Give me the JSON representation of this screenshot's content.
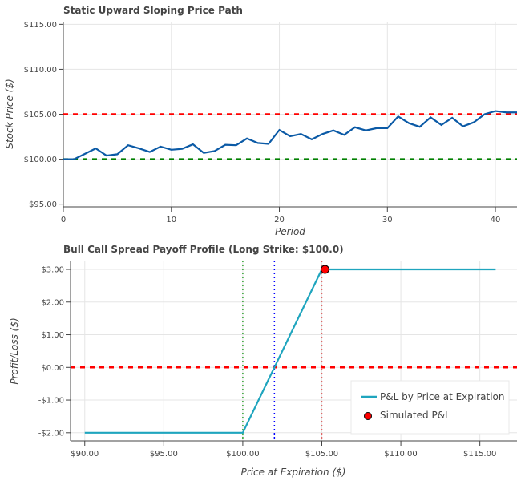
{
  "chart_data": [
    {
      "type": "line",
      "title": "Static Upward Sloping Price Path",
      "xlabel": "Period",
      "ylabel": "Stock Price ($)",
      "xlim": [
        0,
        42
      ],
      "ylim": [
        94.7,
        115.3
      ],
      "xticks": [
        0,
        10,
        20,
        30,
        40
      ],
      "xtick_labels": [
        "0",
        "10",
        "20",
        "30",
        "40"
      ],
      "yticks": [
        95,
        100,
        105,
        110,
        115
      ],
      "ytick_labels": [
        "$95.00",
        "$100.00",
        "$105.00",
        "$110.00",
        "$115.00"
      ],
      "grid": true,
      "series": [
        {
          "color": "#0b5aa6",
          "x": [
            0,
            1,
            2,
            3,
            4,
            5,
            6,
            7,
            8,
            9,
            10,
            11,
            12,
            13,
            14,
            15,
            16,
            17,
            18,
            19,
            20,
            21,
            22,
            23,
            24,
            25,
            26,
            27,
            28,
            29,
            30,
            31,
            32,
            33,
            34,
            35,
            36,
            37,
            38,
            39,
            40,
            41,
            42
          ],
          "y": [
            100.0,
            100.0,
            100.6,
            101.2,
            100.4,
            100.55,
            101.55,
            101.2,
            100.8,
            101.4,
            101.05,
            101.15,
            101.65,
            100.7,
            100.9,
            101.6,
            101.55,
            102.3,
            101.8,
            101.7,
            103.25,
            102.55,
            102.8,
            102.2,
            102.8,
            103.2,
            102.7,
            103.55,
            103.2,
            103.45,
            103.45,
            104.75,
            104.0,
            103.6,
            104.65,
            103.8,
            104.6,
            103.65,
            104.1,
            105.0,
            105.35,
            105.2,
            105.2
          ]
        }
      ],
      "hlines": [
        {
          "y": 105,
          "color": "#ff0000",
          "style": "dashed"
        },
        {
          "y": 100,
          "color": "#008000",
          "style": "dashed"
        }
      ]
    },
    {
      "type": "line",
      "title": "Bull Call Spread Payoff Profile (Long Strike: $100.0)",
      "xlabel": "Price at Expiration ($)",
      "ylabel": "Profit/Loss ($)",
      "xlim": [
        89.1,
        117.35
      ],
      "ylim": [
        -2.25,
        3.27
      ],
      "xticks": [
        90,
        95,
        100,
        105,
        110,
        115
      ],
      "xtick_labels": [
        "$90.00",
        "$95.00",
        "$100.00",
        "$105.00",
        "$110.00",
        "$115.00"
      ],
      "yticks": [
        -2,
        -1,
        0,
        1,
        2,
        3
      ],
      "ytick_labels": [
        "-$2.00",
        "-$1.00",
        "$0.00",
        "$1.00",
        "$2.00",
        "$3.00"
      ],
      "grid": true,
      "legend": "bottom-right",
      "series": [
        {
          "name": "P&L by Price at Expiration",
          "color": "#1fa5be",
          "x": [
            90,
            100,
            105,
            116
          ],
          "y": [
            -2,
            -2,
            3,
            3
          ]
        }
      ],
      "points": [
        {
          "name": "Simulated P&L",
          "color": "#ff0000",
          "x": 105.2,
          "y": 3.0
        }
      ],
      "hlines": [
        {
          "y": 0,
          "color": "#ff0000",
          "style": "dashed"
        }
      ],
      "vlines": [
        {
          "x": 100,
          "color": "#2ca02c",
          "style": "dotted"
        },
        {
          "x": 102,
          "color": "#0000ff",
          "style": "dotted"
        },
        {
          "x": 105,
          "color": "#e06666",
          "style": "dotted"
        }
      ]
    }
  ]
}
